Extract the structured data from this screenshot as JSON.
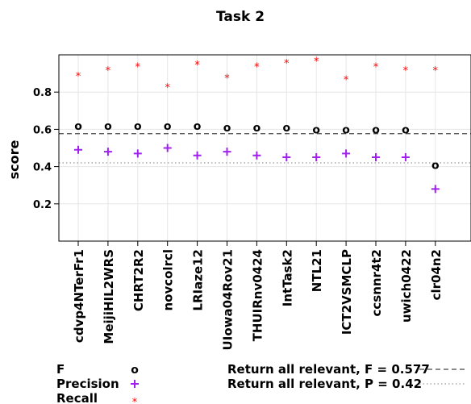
{
  "chart_data": {
    "type": "scatter",
    "title": "Task 2",
    "ylabel": "score",
    "xlabel": "",
    "ylim": [
      0,
      1
    ],
    "yticks": [
      0.2,
      0.4,
      0.6,
      0.8
    ],
    "ytick_labels": [
      "0.2",
      "0.4",
      "0.6",
      "0.8"
    ],
    "grid": true,
    "categories": [
      "cdvp4NTerFr1",
      "MeijiHIL2WRS",
      "CHRT2R2",
      "novcolrcl",
      "LRIaze12",
      "UIowa04Rov21",
      "THUIRnv0424",
      "IntTask2",
      "NTL21",
      "ICT2VSMCLP",
      "ccsnnr4t2",
      "uwich0422",
      "clr04n2"
    ],
    "series": [
      {
        "name": "F",
        "marker": "o",
        "color": "#000000",
        "values": [
          0.62,
          0.62,
          0.62,
          0.62,
          0.62,
          0.61,
          0.61,
          0.61,
          0.6,
          0.6,
          0.6,
          0.6,
          0.41
        ]
      },
      {
        "name": "Precision",
        "marker": "+",
        "color": "#a020f0",
        "values": [
          0.49,
          0.48,
          0.47,
          0.5,
          0.46,
          0.48,
          0.46,
          0.45,
          0.45,
          0.47,
          0.45,
          0.45,
          0.28
        ]
      },
      {
        "name": "Recall",
        "marker": "*",
        "color": "#ff0000",
        "values": [
          0.9,
          0.93,
          0.95,
          0.84,
          0.96,
          0.89,
          0.95,
          0.97,
          0.98,
          0.88,
          0.95,
          0.93,
          0.93
        ]
      }
    ],
    "reference_lines": [
      {
        "label": "Return all relevant, F = 0.577",
        "value": 0.577,
        "style": "dashed"
      },
      {
        "label": "Return all relevant, P = 0.42",
        "value": 0.42,
        "style": "dotted"
      }
    ],
    "legend_position": "bottom"
  }
}
